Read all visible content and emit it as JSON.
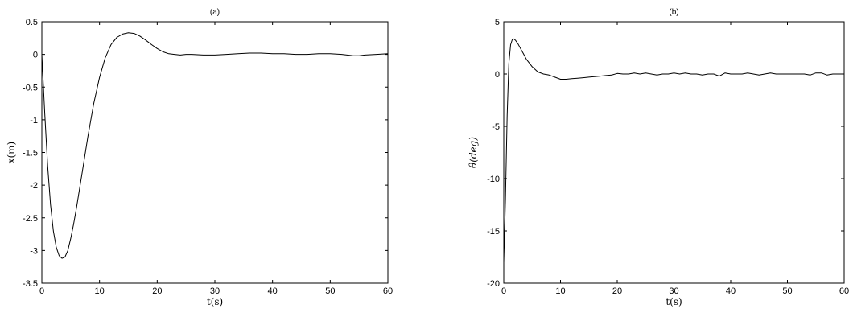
{
  "chart_data": [
    {
      "type": "line",
      "title": "(a)",
      "xlabel": "t(s)",
      "ylabel": "x(m)",
      "xlim": [
        0,
        60
      ],
      "ylim": [
        -3.5,
        0.5
      ],
      "xticks": [
        0,
        10,
        20,
        30,
        40,
        50,
        60
      ],
      "yticks": [
        -3.5,
        -3,
        -2.5,
        -2,
        -1.5,
        -1,
        -0.5,
        0,
        0.5
      ],
      "series": [
        {
          "x": [
            0,
            0.5,
            1,
            1.5,
            2,
            2.5,
            3,
            3.5,
            4,
            4.5,
            5,
            5.5,
            6,
            7,
            8,
            9,
            10,
            11,
            12,
            13,
            14,
            15,
            16,
            17,
            18,
            19,
            20,
            21,
            22,
            23,
            24,
            25,
            26,
            28,
            30,
            32,
            34,
            36,
            38,
            40,
            42,
            44,
            46,
            48,
            50,
            52,
            54,
            55,
            56,
            58,
            60
          ],
          "y": [
            0,
            -0.9,
            -1.7,
            -2.3,
            -2.7,
            -2.95,
            -3.08,
            -3.12,
            -3.1,
            -3.0,
            -2.82,
            -2.6,
            -2.35,
            -1.8,
            -1.25,
            -0.75,
            -0.35,
            -0.05,
            0.15,
            0.26,
            0.31,
            0.33,
            0.32,
            0.28,
            0.22,
            0.15,
            0.09,
            0.04,
            0.01,
            0.0,
            -0.01,
            0.0,
            0.0,
            -0.01,
            -0.01,
            0.0,
            0.01,
            0.02,
            0.02,
            0.01,
            0.01,
            0.0,
            0.0,
            0.01,
            0.01,
            0.0,
            -0.02,
            -0.02,
            -0.01,
            0.0,
            0.01
          ]
        }
      ]
    },
    {
      "type": "line",
      "title": "(b)",
      "xlabel": "t(s)",
      "ylabel": "θ(deg)",
      "xlim": [
        0,
        60
      ],
      "ylim": [
        -20,
        5
      ],
      "xticks": [
        0,
        10,
        20,
        30,
        40,
        50,
        60
      ],
      "yticks": [
        -20,
        -15,
        -10,
        -5,
        0,
        5
      ],
      "series": [
        {
          "x": [
            0,
            0.3,
            0.6,
            0.9,
            1.2,
            1.5,
            1.8,
            2.1,
            2.5,
            3,
            3.5,
            4,
            5,
            6,
            7,
            8,
            9,
            10,
            11,
            12,
            13,
            14,
            15,
            16,
            17,
            18,
            19,
            20,
            21,
            22,
            23,
            24,
            25,
            26,
            27,
            28,
            29,
            30,
            31,
            32,
            33,
            34,
            35,
            36,
            37,
            38,
            39,
            40,
            41,
            42,
            43,
            44,
            45,
            46,
            47,
            48,
            49,
            50,
            51,
            52,
            53,
            54,
            55,
            56,
            57,
            58,
            59,
            60
          ],
          "y": [
            -18,
            -12,
            -4,
            1,
            2.8,
            3.3,
            3.35,
            3.2,
            2.9,
            2.4,
            1.9,
            1.4,
            0.7,
            0.2,
            0.0,
            -0.1,
            -0.3,
            -0.5,
            -0.5,
            -0.45,
            -0.4,
            -0.35,
            -0.3,
            -0.25,
            -0.2,
            -0.15,
            -0.1,
            0.05,
            0.0,
            0.0,
            0.1,
            0.0,
            0.1,
            0.0,
            -0.1,
            0.0,
            0.0,
            0.1,
            0.0,
            0.1,
            0.0,
            0.0,
            -0.1,
            0.0,
            0.0,
            -0.2,
            0.1,
            0.0,
            0.0,
            0.0,
            0.1,
            0.0,
            -0.1,
            0.0,
            0.1,
            0.0,
            0.0,
            0.0,
            0.0,
            0.0,
            0.0,
            -0.1,
            0.1,
            0.1,
            -0.1,
            0.0,
            0.0,
            0.0
          ]
        }
      ]
    }
  ]
}
